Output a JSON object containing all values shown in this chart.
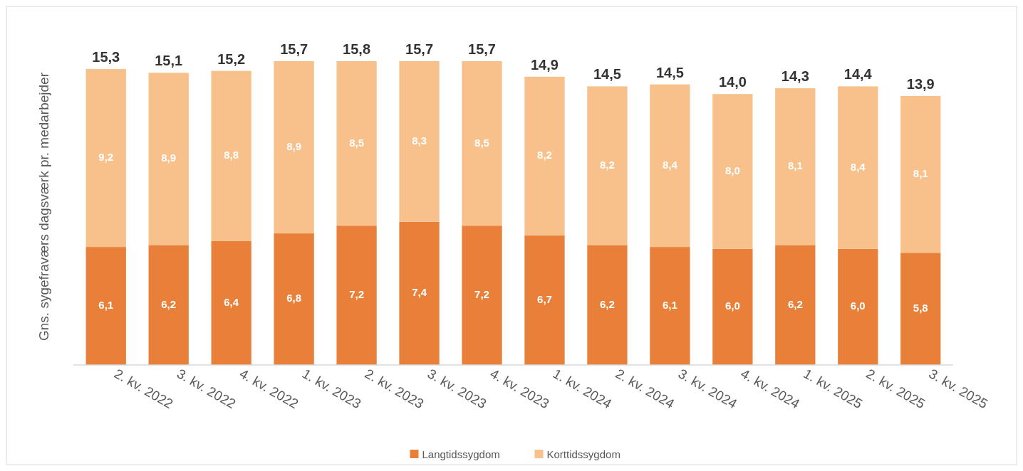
{
  "chart_data": {
    "type": "bar",
    "stacked": true,
    "ylabel": "Gns. sygefraværs dagsværk pr. medarbejder",
    "categories": [
      "2. kv. 2022",
      "3. kv. 2022",
      "4. kv. 2022",
      "1. kv. 2023",
      "2. kv. 2023",
      "3. kv. 2023",
      "4. kv. 2023",
      "1. kv. 2024",
      "2. kv. 2024",
      "3. kv. 2024",
      "4. kv. 2024",
      "1. kv. 2025",
      "2. kv. 2025",
      "3. kv. 2025"
    ],
    "series": [
      {
        "name": "Langtidssygdom",
        "color": "#e8803a",
        "values": [
          6.1,
          6.2,
          6.4,
          6.8,
          7.2,
          7.4,
          7.2,
          6.7,
          6.2,
          6.1,
          6.0,
          6.2,
          6.0,
          5.8
        ],
        "value_labels": [
          "6,1",
          "6,2",
          "6,4",
          "6,8",
          "7,2",
          "7,4",
          "7,2",
          "6,7",
          "6,2",
          "6,1",
          "6,0",
          "6,2",
          "6,0",
          "5,8"
        ]
      },
      {
        "name": "Korttidssygdom",
        "color": "#f8c08a",
        "values": [
          9.2,
          8.9,
          8.8,
          8.9,
          8.5,
          8.3,
          8.5,
          8.2,
          8.2,
          8.4,
          8.0,
          8.1,
          8.4,
          8.1
        ],
        "value_labels": [
          "9,2",
          "8,9",
          "8,8",
          "8,9",
          "8,5",
          "8,3",
          "8,5",
          "8,2",
          "8,2",
          "8,4",
          "8,0",
          "8,1",
          "8,4",
          "8,1"
        ]
      }
    ],
    "totals": [
      "15,3",
      "15,1",
      "15,2",
      "15,7",
      "15,8",
      "15,7",
      "15,7",
      "14,9",
      "14,5",
      "14,5",
      "14,0",
      "14,3",
      "14,4",
      "13,9"
    ],
    "legend": "bottom"
  }
}
